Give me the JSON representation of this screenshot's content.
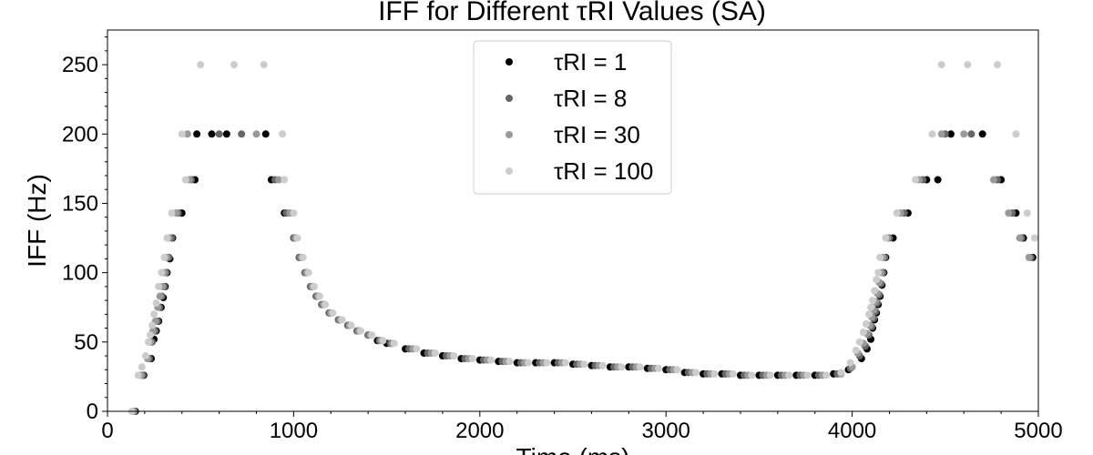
{
  "chart_data": {
    "type": "scatter",
    "title": "IFF for Different τRI Values (SA)",
    "xlabel": "Time (ms)",
    "ylabel": "IFF (Hz)",
    "xlim": [
      0,
      5000
    ],
    "ylim": [
      0,
      275
    ],
    "xticks": [
      0,
      1000,
      2000,
      3000,
      4000,
      5000
    ],
    "yticks": [
      0,
      50,
      100,
      150,
      200,
      250
    ],
    "legend_position": "top-center",
    "grid": false,
    "series": [
      {
        "name": "τRI = 1",
        "color": "#000000",
        "points": [
          [
            150,
            0
          ],
          [
            195,
            26
          ],
          [
            235,
            38
          ],
          [
            250,
            52
          ],
          [
            262,
            58
          ],
          [
            275,
            65
          ],
          [
            288,
            75
          ],
          [
            300,
            82
          ],
          [
            310,
            90
          ],
          [
            320,
            100
          ],
          [
            335,
            110
          ],
          [
            350,
            125
          ],
          [
            400,
            143
          ],
          [
            470,
            167
          ],
          [
            480,
            200
          ],
          [
            560,
            200
          ],
          [
            640,
            200
          ],
          [
            850,
            200
          ],
          [
            880,
            167
          ],
          [
            950,
            143
          ],
          [
            1000,
            125
          ],
          [
            1030,
            111
          ],
          [
            1070,
            100
          ],
          [
            1100,
            90
          ],
          [
            1130,
            83
          ],
          [
            1160,
            77
          ],
          [
            1200,
            71
          ],
          [
            1250,
            66
          ],
          [
            1300,
            62
          ],
          [
            1350,
            58
          ],
          [
            1400,
            55
          ],
          [
            1450,
            51
          ],
          [
            1500,
            49
          ],
          [
            1600,
            45
          ],
          [
            1700,
            42
          ],
          [
            1800,
            40
          ],
          [
            1900,
            38
          ],
          [
            2000,
            37
          ],
          [
            2100,
            36
          ],
          [
            2200,
            35
          ],
          [
            2300,
            35
          ],
          [
            2400,
            35
          ],
          [
            2500,
            34
          ],
          [
            2600,
            33
          ],
          [
            2700,
            32
          ],
          [
            2800,
            32
          ],
          [
            2900,
            31
          ],
          [
            3000,
            30
          ],
          [
            3100,
            28
          ],
          [
            3200,
            27
          ],
          [
            3300,
            27
          ],
          [
            3400,
            26
          ],
          [
            3500,
            26
          ],
          [
            3600,
            26
          ],
          [
            3700,
            26
          ],
          [
            3800,
            26
          ],
          [
            3900,
            27
          ],
          [
            3980,
            30
          ],
          [
            4050,
            38
          ],
          [
            4080,
            45
          ],
          [
            4100,
            52
          ],
          [
            4110,
            60
          ],
          [
            4120,
            66
          ],
          [
            4130,
            71
          ],
          [
            4140,
            77
          ],
          [
            4150,
            83
          ],
          [
            4160,
            91
          ],
          [
            4170,
            100
          ],
          [
            4180,
            111
          ],
          [
            4220,
            125
          ],
          [
            4300,
            143
          ],
          [
            4400,
            167
          ],
          [
            4460,
            167
          ],
          [
            4530,
            200
          ],
          [
            4700,
            200
          ],
          [
            4800,
            167
          ],
          [
            4880,
            143
          ],
          [
            4920,
            125
          ],
          [
            4970,
            111
          ]
        ]
      },
      {
        "name": "τRI = 8",
        "color": "#666666",
        "points": [
          [
            145,
            0
          ],
          [
            190,
            26
          ],
          [
            225,
            38
          ],
          [
            240,
            50
          ],
          [
            255,
            58
          ],
          [
            268,
            65
          ],
          [
            280,
            75
          ],
          [
            292,
            83
          ],
          [
            305,
            90
          ],
          [
            315,
            100
          ],
          [
            330,
            111
          ],
          [
            345,
            125
          ],
          [
            380,
            143
          ],
          [
            450,
            167
          ],
          [
            600,
            200
          ],
          [
            720,
            200
          ],
          [
            900,
            167
          ],
          [
            960,
            143
          ],
          [
            1000,
            125
          ],
          [
            1030,
            111
          ],
          [
            1060,
            100
          ],
          [
            1090,
            90
          ],
          [
            1120,
            83
          ],
          [
            1150,
            77
          ],
          [
            1190,
            71
          ],
          [
            1240,
            66
          ],
          [
            1290,
            62
          ],
          [
            1340,
            58
          ],
          [
            1400,
            55
          ],
          [
            1460,
            51
          ],
          [
            1520,
            49
          ],
          [
            1620,
            45
          ],
          [
            1720,
            42
          ],
          [
            1820,
            40
          ],
          [
            1920,
            38
          ],
          [
            2020,
            37
          ],
          [
            2120,
            36
          ],
          [
            2220,
            35
          ],
          [
            2320,
            35
          ],
          [
            2420,
            35
          ],
          [
            2520,
            34
          ],
          [
            2620,
            33
          ],
          [
            2720,
            32
          ],
          [
            2820,
            32
          ],
          [
            2920,
            31
          ],
          [
            3020,
            30
          ],
          [
            3120,
            28
          ],
          [
            3220,
            27
          ],
          [
            3320,
            27
          ],
          [
            3420,
            26
          ],
          [
            3520,
            26
          ],
          [
            3620,
            26
          ],
          [
            3720,
            26
          ],
          [
            3820,
            26
          ],
          [
            3920,
            27
          ],
          [
            3990,
            31
          ],
          [
            4040,
            40
          ],
          [
            4070,
            47
          ],
          [
            4090,
            55
          ],
          [
            4105,
            61
          ],
          [
            4115,
            67
          ],
          [
            4125,
            72
          ],
          [
            4135,
            78
          ],
          [
            4145,
            84
          ],
          [
            4155,
            92
          ],
          [
            4165,
            100
          ],
          [
            4175,
            111
          ],
          [
            4200,
            125
          ],
          [
            4280,
            143
          ],
          [
            4380,
            167
          ],
          [
            4500,
            200
          ],
          [
            4640,
            200
          ],
          [
            4780,
            167
          ],
          [
            4860,
            143
          ],
          [
            4910,
            125
          ],
          [
            4960,
            111
          ]
        ]
      },
      {
        "name": "τRI = 30",
        "color": "#999999",
        "points": [
          [
            140,
            0
          ],
          [
            180,
            26
          ],
          [
            215,
            38
          ],
          [
            230,
            50
          ],
          [
            245,
            58
          ],
          [
            258,
            65
          ],
          [
            270,
            75
          ],
          [
            282,
            83
          ],
          [
            295,
            90
          ],
          [
            305,
            100
          ],
          [
            318,
            111
          ],
          [
            330,
            125
          ],
          [
            370,
            143
          ],
          [
            440,
            167
          ],
          [
            430,
            200
          ],
          [
            800,
            200
          ],
          [
            920,
            167
          ],
          [
            980,
            143
          ],
          [
            1010,
            125
          ],
          [
            1040,
            111
          ],
          [
            1070,
            100
          ],
          [
            1100,
            90
          ],
          [
            1130,
            83
          ],
          [
            1160,
            77
          ],
          [
            1200,
            71
          ],
          [
            1250,
            66
          ],
          [
            1300,
            62
          ],
          [
            1350,
            58
          ],
          [
            1410,
            55
          ],
          [
            1470,
            51
          ],
          [
            1530,
            49
          ],
          [
            1640,
            45
          ],
          [
            1740,
            42
          ],
          [
            1840,
            40
          ],
          [
            1940,
            38
          ],
          [
            2040,
            37
          ],
          [
            2140,
            36
          ],
          [
            2240,
            35
          ],
          [
            2340,
            35
          ],
          [
            2440,
            35
          ],
          [
            2540,
            34
          ],
          [
            2640,
            33
          ],
          [
            2740,
            32
          ],
          [
            2840,
            32
          ],
          [
            2940,
            31
          ],
          [
            3040,
            30
          ],
          [
            3140,
            28
          ],
          [
            3240,
            27
          ],
          [
            3340,
            27
          ],
          [
            3440,
            26
          ],
          [
            3540,
            26
          ],
          [
            3640,
            26
          ],
          [
            3740,
            26
          ],
          [
            3840,
            26
          ],
          [
            3940,
            27
          ],
          [
            4000,
            32
          ],
          [
            4030,
            42
          ],
          [
            4060,
            49
          ],
          [
            4080,
            56
          ],
          [
            4095,
            62
          ],
          [
            4105,
            68
          ],
          [
            4115,
            73
          ],
          [
            4125,
            79
          ],
          [
            4135,
            85
          ],
          [
            4145,
            93
          ],
          [
            4155,
            100
          ],
          [
            4165,
            111
          ],
          [
            4190,
            125
          ],
          [
            4260,
            143
          ],
          [
            4360,
            167
          ],
          [
            4480,
            200
          ],
          [
            4600,
            200
          ],
          [
            4760,
            167
          ],
          [
            4840,
            143
          ],
          [
            4900,
            125
          ],
          [
            4950,
            111
          ]
        ]
      },
      {
        "name": "τRI = 100",
        "color": "#cccccc",
        "points": [
          [
            130,
            0
          ],
          [
            165,
            26
          ],
          [
            185,
            32
          ],
          [
            205,
            40
          ],
          [
            220,
            50
          ],
          [
            230,
            55
          ],
          [
            240,
            62
          ],
          [
            250,
            70
          ],
          [
            262,
            78
          ],
          [
            275,
            90
          ],
          [
            290,
            100
          ],
          [
            305,
            111
          ],
          [
            320,
            125
          ],
          [
            345,
            143
          ],
          [
            420,
            167
          ],
          [
            400,
            200
          ],
          [
            500,
            250
          ],
          [
            680,
            250
          ],
          [
            840,
            250
          ],
          [
            940,
            200
          ],
          [
            950,
            167
          ],
          [
            1000,
            143
          ],
          [
            1020,
            125
          ],
          [
            1050,
            111
          ],
          [
            1080,
            100
          ],
          [
            1110,
            90
          ],
          [
            1140,
            83
          ],
          [
            1170,
            77
          ],
          [
            1210,
            71
          ],
          [
            1260,
            66
          ],
          [
            1310,
            62
          ],
          [
            1360,
            58
          ],
          [
            1420,
            55
          ],
          [
            1480,
            51
          ],
          [
            1540,
            49
          ],
          [
            1660,
            45
          ],
          [
            1760,
            42
          ],
          [
            1860,
            40
          ],
          [
            1960,
            38
          ],
          [
            2060,
            37
          ],
          [
            2160,
            36
          ],
          [
            2260,
            35
          ],
          [
            2360,
            35
          ],
          [
            2460,
            35
          ],
          [
            2560,
            34
          ],
          [
            2660,
            33
          ],
          [
            2760,
            32
          ],
          [
            2860,
            32
          ],
          [
            2960,
            31
          ],
          [
            3060,
            30
          ],
          [
            3160,
            28
          ],
          [
            3260,
            27
          ],
          [
            3360,
            27
          ],
          [
            3460,
            26
          ],
          [
            3560,
            26
          ],
          [
            3660,
            26
          ],
          [
            3760,
            26
          ],
          [
            3860,
            26
          ],
          [
            3940,
            28
          ],
          [
            3990,
            35
          ],
          [
            4020,
            44
          ],
          [
            4040,
            50
          ],
          [
            4060,
            57
          ],
          [
            4075,
            63
          ],
          [
            4090,
            70
          ],
          [
            4100,
            75
          ],
          [
            4110,
            80
          ],
          [
            4120,
            87
          ],
          [
            4130,
            95
          ],
          [
            4140,
            100
          ],
          [
            4150,
            111
          ],
          [
            4180,
            125
          ],
          [
            4240,
            143
          ],
          [
            4340,
            167
          ],
          [
            4430,
            200
          ],
          [
            4480,
            250
          ],
          [
            4620,
            250
          ],
          [
            4780,
            250
          ],
          [
            4880,
            200
          ],
          [
            4940,
            143
          ],
          [
            4980,
            125
          ]
        ]
      }
    ]
  }
}
